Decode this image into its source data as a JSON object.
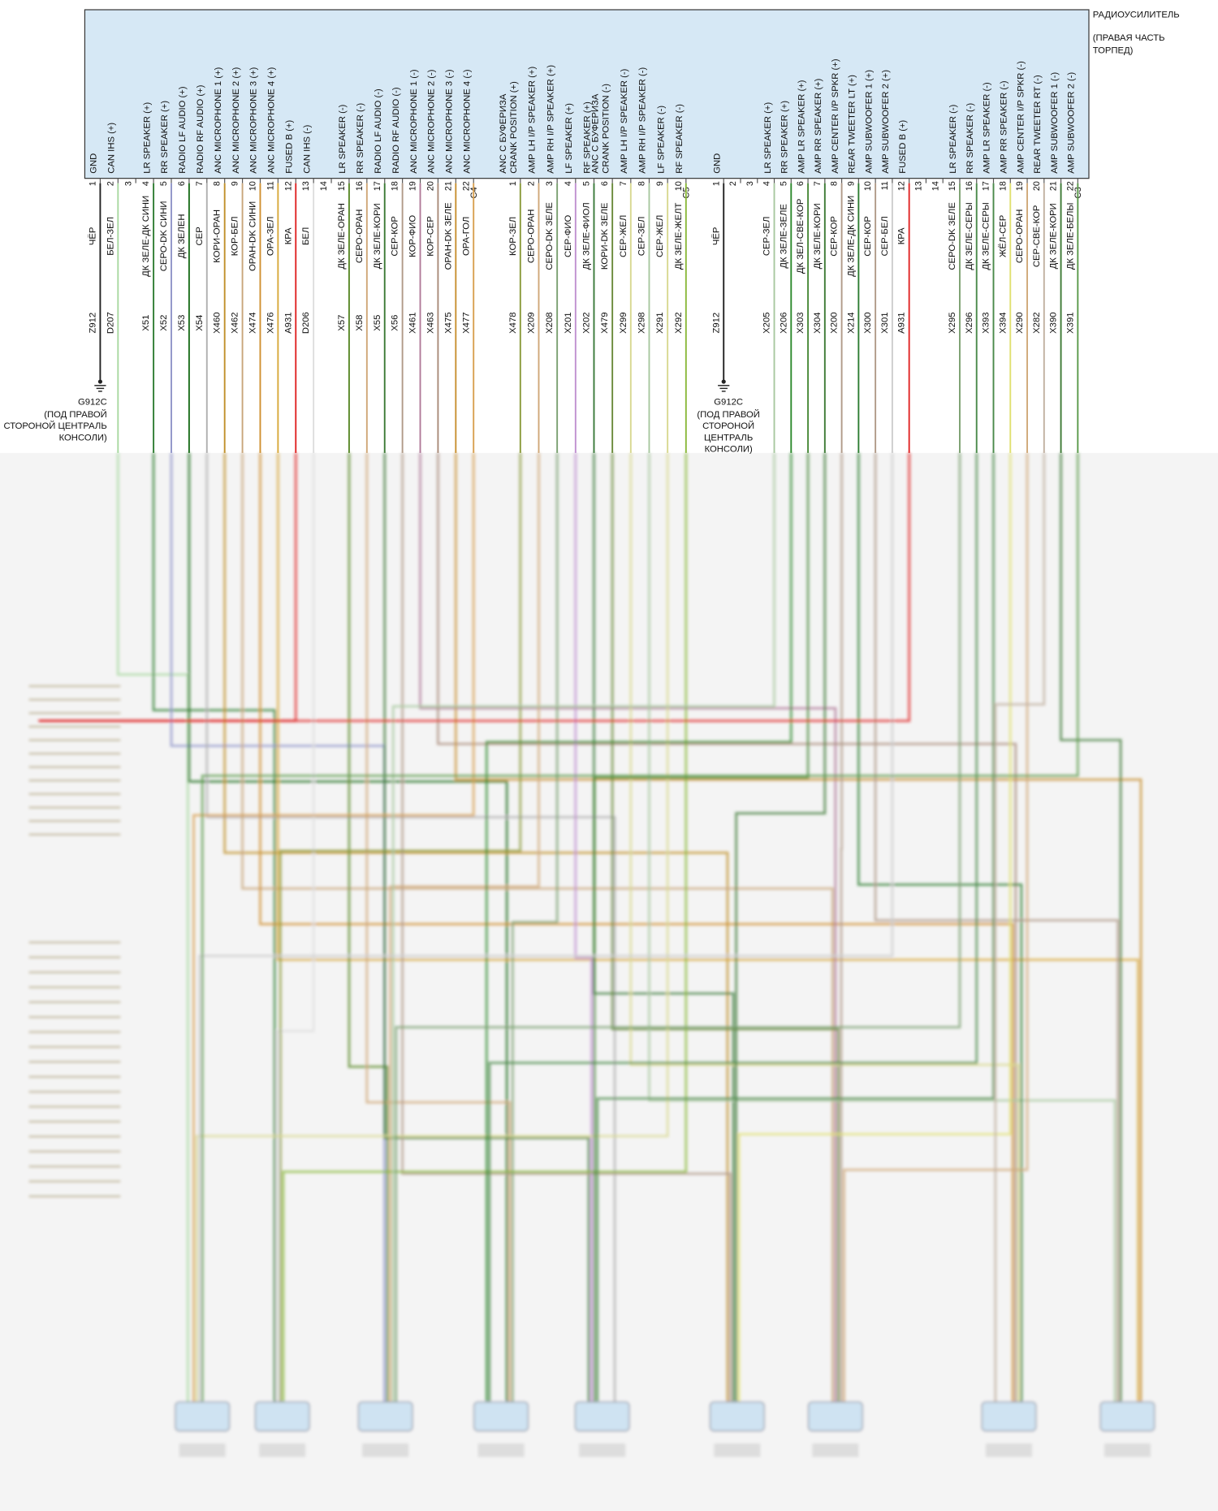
{
  "header": {
    "title": "РАДИОУСИЛИТЕЛЬ",
    "subtitle": [
      "(ПРАВАЯ ЧАСТЬ",
      "ТОРПЕД)"
    ]
  },
  "connectors": [
    {
      "name": "C4",
      "pins": [
        {
          "pin": 1,
          "function": [
            "GND"
          ],
          "wire": "ЧЁР",
          "circuit": "Z912",
          "color": "#222222"
        },
        {
          "pin": 2,
          "function": [
            "CAN IHS (+)"
          ],
          "wire": "БЕЛ-ЗЕЛ",
          "circuit": "D207",
          "color": "#a8d8a0"
        },
        {
          "pin": 3
        },
        {
          "pin": 4,
          "function": [
            "LR SPEAKER (+)"
          ],
          "wire": "ДК ЗЕЛЕ-ДК СИНИ",
          "circuit": "X51",
          "color": "#2e7d32"
        },
        {
          "pin": 5,
          "function": [
            "RR SPEAKER (+)"
          ],
          "wire": "СЕРО-DK СИНИ",
          "circuit": "X52",
          "color": "#8f94c8"
        },
        {
          "pin": 6,
          "function": [
            "RADIO LF AUDIO (+)"
          ],
          "wire": "ДК ЗЕЛЕН",
          "circuit": "X53",
          "color": "#1b6e1b"
        },
        {
          "pin": 7,
          "function": [
            "RADIO RF AUDIO (+)"
          ],
          "wire": "СЕР",
          "circuit": "X54",
          "color": "#b0b0b0"
        },
        {
          "pin": 8,
          "function": [
            "ANC MICROPHONE 1 (+)"
          ],
          "wire": "КОРИ-ОРАН",
          "circuit": "X460",
          "color": "#c0902a"
        },
        {
          "pin": 9,
          "function": [
            "ANC MICROPHONE 2 (+)"
          ],
          "wire": "КОР-БЕЛ",
          "circuit": "X462",
          "color": "#c8a57a"
        },
        {
          "pin": 10,
          "function": [
            "ANC MICROPHONE 3 (+)"
          ],
          "wire": "ОРАН-DK СИНИ",
          "circuit": "X474",
          "color": "#d09030"
        },
        {
          "pin": 11,
          "function": [
            "ANC MICROPHONE 4 (+)"
          ],
          "wire": "ОРА-ЗЕЛ",
          "circuit": "X476",
          "color": "#d8a83a"
        },
        {
          "pin": 12,
          "function": [
            "FUSED B (+)"
          ],
          "wire": "КРА",
          "circuit": "A931",
          "color": "#e02424"
        },
        {
          "pin": 13,
          "function": [
            "CAN IHS (-)"
          ],
          "wire": "БЕЛ",
          "circuit": "D206",
          "color": "#dddddd"
        },
        {
          "pin": 14
        },
        {
          "pin": 15,
          "function": [
            "LR SPEAKER (-)"
          ],
          "wire": "ДК ЗЕЛЕ-ОРАН",
          "circuit": "X57",
          "color": "#5a8a2a"
        },
        {
          "pin": 16,
          "function": [
            "RR SPEAKER (-)"
          ],
          "wire": "СЕРО-ОРАН",
          "circuit": "X58",
          "color": "#d0a878"
        },
        {
          "pin": 17,
          "function": [
            "RADIO LF AUDIO (-)"
          ],
          "wire": "ДК ЗЕЛЕ-КОРИ",
          "circuit": "X55",
          "color": "#3d7a35"
        },
        {
          "pin": 18,
          "function": [
            "RADIO RF AUDIO (-)"
          ],
          "wire": "СЕР-КОР",
          "circuit": "X56",
          "color": "#b09a88"
        },
        {
          "pin": 19,
          "function": [
            "ANC MICROPHONE 1 (-)"
          ],
          "wire": "КОР-ФИО",
          "circuit": "X461",
          "color": "#b07a98"
        },
        {
          "pin": 20,
          "function": [
            "ANC MICROPHONE 2 (-)"
          ],
          "wire": "КОР-СЕР",
          "circuit": "X463",
          "color": "#a88a78"
        },
        {
          "pin": 21,
          "function": [
            "ANC MICROPHONE 3 (-)"
          ],
          "wire": "ОРАН-DK ЗЕЛЕ",
          "circuit": "X475",
          "color": "#c89030"
        },
        {
          "pin": 22,
          "function": [
            "ANC MICROPHONE 4 (-)"
          ],
          "wire": "ОРА-ГОЛ",
          "circuit": "X477",
          "color": "#d8a050"
        }
      ]
    },
    {
      "name": "C5",
      "pins": [
        {
          "pin": 1,
          "function": [
            "ANC С БУФЕРИЗА",
            "CRANK POSITION (+)"
          ],
          "wire": "КОР-ЗЕЛ",
          "circuit": "X478",
          "color": "#8a9a3a"
        },
        {
          "pin": 2,
          "function": [
            "AMP LH I/P SPEAKER (+)"
          ],
          "wire": "СЕРО-ОРАН",
          "circuit": "X209",
          "color": "#d0a878"
        },
        {
          "pin": 3,
          "function": [
            "AMP RH I/P SPEAKER (+)"
          ],
          "wire": "СЕРО-DK ЗЕЛЕ",
          "circuit": "X208",
          "color": "#7aa070"
        },
        {
          "pin": 4,
          "function": [
            "LF SPEAKER (+)"
          ],
          "wire": "СЕР-ФИО",
          "circuit": "X201",
          "color": "#c090d0"
        },
        {
          "pin": 5,
          "function": [
            "RF SPEAKER (+)"
          ],
          "wire": "ДК ЗЕЛЕ-ФИОЛ",
          "circuit": "X202",
          "color": "#3a7a3a"
        },
        {
          "pin": 6,
          "function": [
            "ANC С БУФЕРИЗА",
            "CRANK POSITION (-)"
          ],
          "wire": "КОРИ-DK ЗЕЛЕ",
          "circuit": "X479",
          "color": "#6a8a3a"
        },
        {
          "pin": 7,
          "function": [
            "AMP LH I/P SPEAKER (-)"
          ],
          "wire": "СЕР-ЖЕЛ",
          "circuit": "X299",
          "color": "#d8d890"
        },
        {
          "pin": 8,
          "function": [
            "AMP RH I/P SPEAKER (-)"
          ],
          "wire": "СЕР-ЗЕЛ",
          "circuit": "X298",
          "color": "#a8c8a0"
        },
        {
          "pin": 9,
          "function": [
            "LF SPEAKER (-)"
          ],
          "wire": "СЕР-ЖЕЛ",
          "circuit": "X291",
          "color": "#d8d890"
        },
        {
          "pin": 10,
          "function": [
            "RF SPEAKER (-)"
          ],
          "wire": "ДК ЗЕЛЕ-ЖЕЛТ",
          "circuit": "X292",
          "color": "#8ab83a"
        }
      ]
    },
    {
      "name": "C3",
      "pins": [
        {
          "pin": 1,
          "function": [
            "GND"
          ],
          "wire": "ЧЁР",
          "circuit": "Z912",
          "color": "#222222"
        },
        {
          "pin": 2
        },
        {
          "pin": 3
        },
        {
          "pin": 4,
          "function": [
            "LR SPEAKER (+)"
          ],
          "wire": "СЕР-ЗЕЛ",
          "circuit": "X205",
          "color": "#a8c8a0"
        },
        {
          "pin": 5,
          "function": [
            "RR SPEAKER (+)"
          ],
          "wire": "ДК ЗЕЛЕ-ЗЕЛЕ",
          "circuit": "X206",
          "color": "#2e8a2e"
        },
        {
          "pin": 6,
          "function": [
            "AMP LR SPEAKER (+)"
          ],
          "wire": "ДК ЗЕЛ-СВЕ-КОР",
          "circuit": "X303",
          "color": "#4a8a3a"
        },
        {
          "pin": 7,
          "function": [
            "AMP RR SPEAKER (+)"
          ],
          "wire": "ДК ЗЕЛЕ-КОРИ",
          "circuit": "X304",
          "color": "#3d7a35"
        },
        {
          "pin": 8,
          "function": [
            "AMP CENTER I/P SPKR (+)"
          ],
          "wire": "СЕР-КОР",
          "circuit": "X200",
          "color": "#b09a88"
        },
        {
          "pin": 9,
          "function": [
            "REAR TWEETER LT (+)"
          ],
          "wire": "ДК ЗЕЛЕ-ДК СИНИ",
          "circuit": "X214",
          "color": "#2e7d32"
        },
        {
          "pin": 10,
          "function": [
            "AMP SUBWOOFER 1 (+)"
          ],
          "wire": "СЕР-КОР",
          "circuit": "X300",
          "color": "#b09a88"
        },
        {
          "pin": 11,
          "function": [
            "AMP SUBWOOFER 2 (+)"
          ],
          "wire": "СЕР-БЕЛ",
          "circuit": "X301",
          "color": "#cccccc"
        },
        {
          "pin": 12,
          "function": [
            "FUSED B (+)"
          ],
          "wire": "КРА",
          "circuit": "A931",
          "color": "#e02424"
        },
        {
          "pin": 13
        },
        {
          "pin": 14
        },
        {
          "pin": 15,
          "function": [
            "LR SPEAKER (-)"
          ],
          "wire": "СЕРО-DK ЗЕЛЕ",
          "circuit": "X295",
          "color": "#7aa070"
        },
        {
          "pin": 16,
          "function": [
            "RR SPEAKER (-)"
          ],
          "wire": "ДК ЗЕЛЕ-СЕРЫ",
          "circuit": "X296",
          "color": "#4a8a4a"
        },
        {
          "pin": 17,
          "function": [
            "AMP LR SPEAKER (-)"
          ],
          "wire": "ДК ЗЕЛЕ-СЕРЫ",
          "circuit": "X393",
          "color": "#4a8a4a"
        },
        {
          "pin": 18,
          "function": [
            "AMP RR SPEAKER (-)"
          ],
          "wire": "ЖЁЛ-СЕР",
          "circuit": "X394",
          "color": "#e0e070"
        },
        {
          "pin": 19,
          "function": [
            "AMP CENTER I/P SPKR (-)"
          ],
          "wire": "СЕРО-ОРАН",
          "circuit": "X290",
          "color": "#d0a878"
        },
        {
          "pin": 20,
          "function": [
            "REAR TWEETER RT (-)"
          ],
          "wire": "СЕР-СВЕ-КОР",
          "circuit": "X282",
          "color": "#c0b0a0"
        },
        {
          "pin": 21,
          "function": [
            "AMP SUBWOOFER 1 (-)"
          ],
          "wire": "ДК ЗЕЛЕ-КОРИ",
          "circuit": "X390",
          "color": "#3d7a35"
        },
        {
          "pin": 22,
          "function": [
            "AMP SUBWOOFER 2 (-)"
          ],
          "wire": "ДК ЗЕЛЕ-БЕЛЫ",
          "circuit": "X391",
          "color": "#5a9a4a"
        }
      ]
    }
  ],
  "grounds": [
    {
      "id": "G912C",
      "note": [
        "(ПОД ПРАВОЙ",
        "СТОРОНОЙ ЦЕНТРАЛЬ",
        "КОНСОЛИ)"
      ]
    },
    {
      "id": "G912C",
      "note": [
        "(ПОД ПРАВОЙ",
        "СТОРОНОЙ",
        "ЦЕНТРАЛЬ",
        "КОНСОЛИ)"
      ]
    }
  ]
}
